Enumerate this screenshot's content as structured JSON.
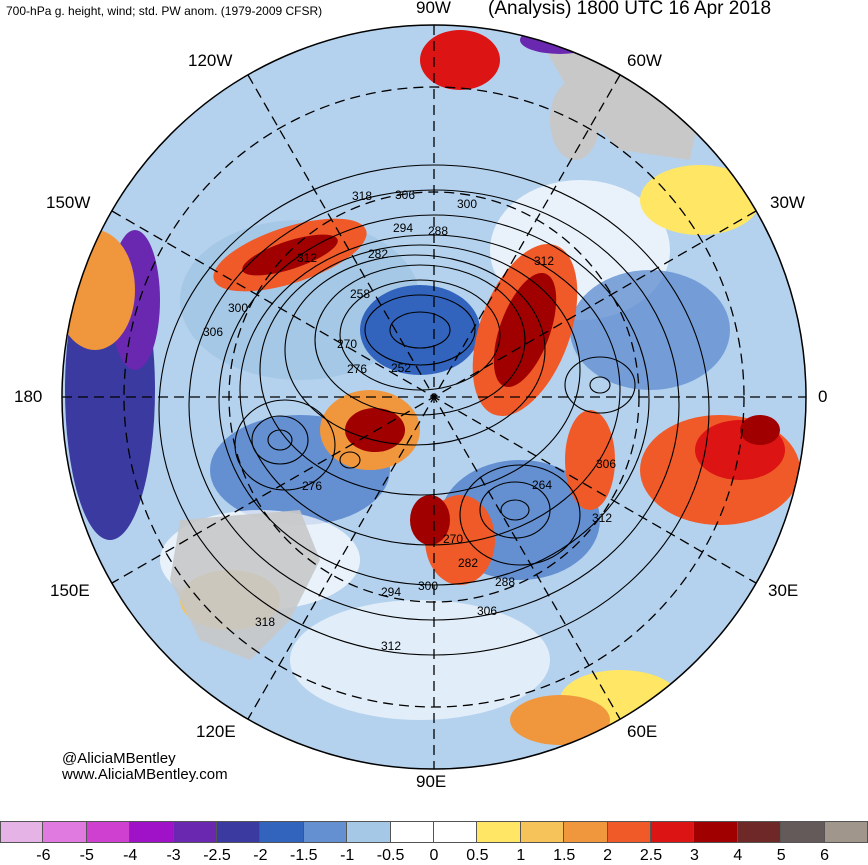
{
  "header": {
    "left_title": "700-hPa g. height, wind; std. PW anom. (1979-2009 CFSR)",
    "right_title": "(Analysis) 1800 UTC 16 Apr 2018"
  },
  "longitude_labels": [
    "90W",
    "120W",
    "60W",
    "150W",
    "30W",
    "180",
    "0",
    "150E",
    "30E",
    "120E",
    "60E",
    "90E"
  ],
  "contour_labels": [
    "318",
    "306",
    "300",
    "294",
    "288",
    "312",
    "282",
    "258",
    "300",
    "306",
    "270",
    "276",
    "252",
    "312",
    "306",
    "276",
    "264",
    "312",
    "270",
    "282",
    "288",
    "294",
    "300",
    "306",
    "312",
    "318"
  ],
  "credits": {
    "handle": "@AliciaMBentley",
    "website": "www.AliciaMBentley.com"
  },
  "colorbar": {
    "tick_labels": [
      "-6",
      "-5",
      "-4",
      "-3",
      "-2.5",
      "-2",
      "-1.5",
      "-1",
      "-0.5",
      "0",
      "0.5",
      "1",
      "1.5",
      "2",
      "2.5",
      "3",
      "4",
      "5",
      "6"
    ],
    "colors": [
      "#e6b3e6",
      "#e07ae0",
      "#d040d0",
      "#a012c8",
      "#6a28b0",
      "#3a3aa0",
      "#3264be",
      "#6490d2",
      "#a5c8e6",
      "#ffffff",
      "#ffffff",
      "#ffe664",
      "#f5c35a",
      "#f0963c",
      "#f05a28",
      "#dc1414",
      "#a00000",
      "#6e2828",
      "#645a5a",
      "#a0968c"
    ]
  },
  "palette": {
    "ocean_background": "#b4d2ee",
    "land_gray": "#c8c8c8",
    "contour": "#000000"
  }
}
